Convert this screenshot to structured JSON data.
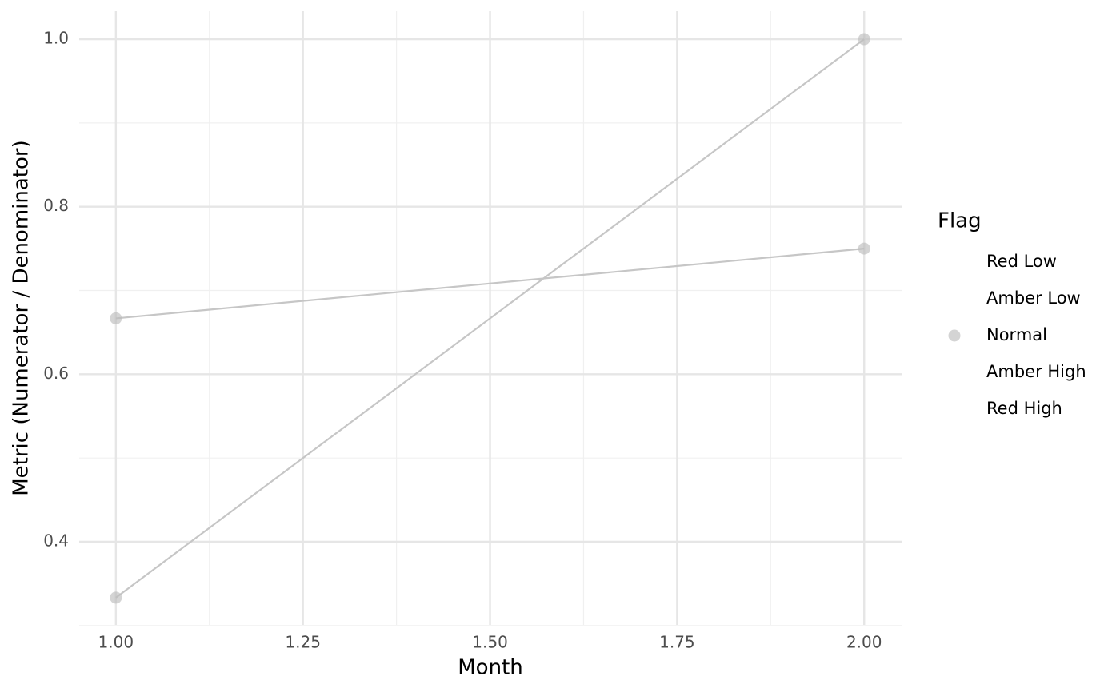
{
  "chart_data": {
    "type": "line",
    "x_label": "Month",
    "y_label": "Metric (Numerator / Denominator)",
    "series": [
      {
        "x": [
          1,
          2
        ],
        "values": [
          0.6667,
          0.75
        ],
        "color": "#c6c6c6",
        "point_color": "#bdbdbd"
      },
      {
        "x": [
          1,
          2
        ],
        "values": [
          0.3333,
          1.0
        ],
        "color": "#c6c6c6",
        "point_color": "#bdbdbd"
      }
    ],
    "xlim": [
      0.951,
      2.05
    ],
    "ylim": [
      0.3008,
      1.0334
    ],
    "xticks": [
      {
        "value": 1,
        "label": "1.00"
      },
      1.25,
      {
        "value": 1.5,
        "label": "1.50"
      },
      1.75,
      {
        "value": 2,
        "label": "2.00"
      }
    ],
    "yticks": [
      0.4,
      0.6,
      0.8,
      {
        "value": 1,
        "label": "1.0"
      }
    ],
    "xminorticks": [
      1.125,
      1.375,
      1.625,
      1.875
    ],
    "yminorticks": [
      0.3,
      0.5,
      0.7,
      0.9
    ],
    "grid": true,
    "legend": {
      "title": "Flag",
      "position": "right",
      "entries": [
        {
          "name": "Red Low",
          "color": null
        },
        {
          "name": "Amber Low",
          "color": null
        },
        {
          "name": "Normal",
          "color": "#bdbdbd"
        },
        {
          "name": "Amber High",
          "color": null
        },
        {
          "name": "Red High",
          "color": null
        }
      ]
    }
  }
}
